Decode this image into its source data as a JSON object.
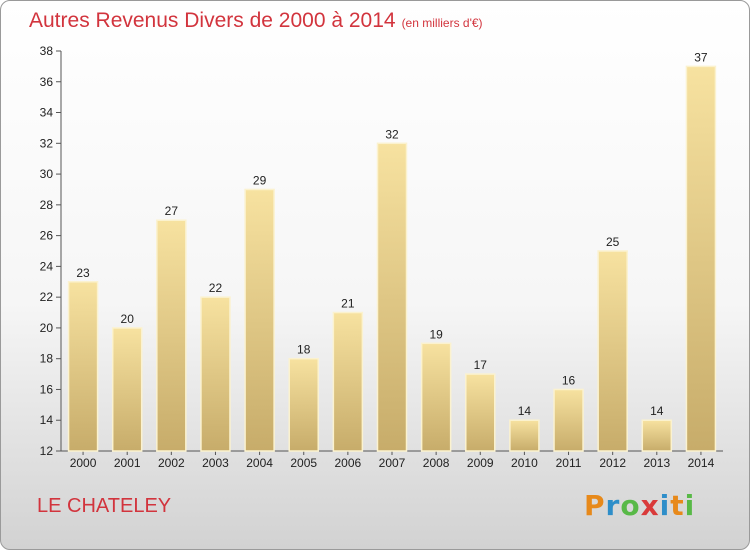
{
  "header": {
    "title": "Autres Revenus Divers de 2000 à 2014",
    "unit": "(en milliers d'€)"
  },
  "footer": {
    "commune": "LE CHATELEY",
    "logo": "Proxiti"
  },
  "colors": {
    "title": "#d2343d",
    "bar_top": "#f7e2a0",
    "bar_bottom": "#c7ac6a",
    "logo": [
      "#e7891a",
      "#2e8ec9",
      "#58b947",
      "#d93a3a",
      "#2e8ec9",
      "#e7891a",
      "#58b947"
    ]
  },
  "chart_data": {
    "type": "bar",
    "title": "Autres Revenus Divers de 2000 à 2014",
    "categories": [
      "2000",
      "2001",
      "2002",
      "2003",
      "2004",
      "2005",
      "2006",
      "2007",
      "2008",
      "2009",
      "2010",
      "2011",
      "2012",
      "2013",
      "2014"
    ],
    "values": [
      23,
      20,
      27,
      22,
      29,
      18,
      21,
      32,
      19,
      17,
      14,
      16,
      25,
      14,
      37
    ],
    "ylim": [
      12,
      38
    ],
    "yticks": [
      12,
      14,
      16,
      18,
      20,
      22,
      24,
      26,
      28,
      30,
      32,
      34,
      36,
      38
    ],
    "grid": false,
    "data_labels": true
  }
}
